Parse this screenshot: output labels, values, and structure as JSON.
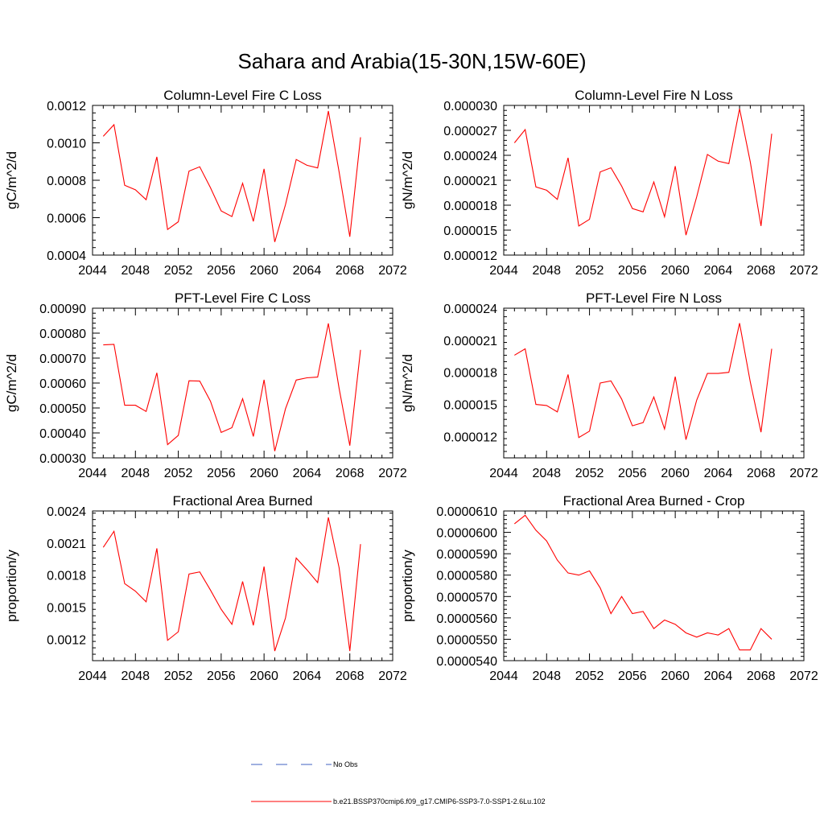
{
  "title": "Sahara and Arabia(15-30N,15W-60E)",
  "colors": {
    "series": "#ff0000",
    "obs": "#4060c0",
    "axis": "#000000"
  },
  "chart_data": [
    {
      "type": "line",
      "title": "Column-Level Fire C Loss",
      "ylabel": "gC/m^2/d",
      "xlim": [
        2044,
        2072
      ],
      "ylim": [
        0.0004,
        0.0012
      ],
      "xticks": [
        2044,
        2048,
        2052,
        2056,
        2060,
        2064,
        2068,
        2072
      ],
      "xtick_labels": [
        "2044",
        "2048",
        "2052",
        "2056",
        "2060",
        "2064",
        "2068",
        "2072"
      ],
      "yticks": [
        0.0004,
        0.0006,
        0.0008,
        0.001,
        0.0012
      ],
      "ytick_labels": [
        "0.0004",
        "0.0006",
        "0.0008",
        "0.0010",
        "0.0012"
      ],
      "x": [
        2045,
        2046,
        2047,
        2048,
        2049,
        2050,
        2051,
        2052,
        2053,
        2054,
        2055,
        2056,
        2057,
        2058,
        2059,
        2060,
        2061,
        2062,
        2063,
        2064,
        2065,
        2066,
        2067,
        2068,
        2069
      ],
      "values": [
        0.001035,
        0.001097,
        0.000773,
        0.000749,
        0.000696,
        0.000925,
        0.000537,
        0.000578,
        0.000849,
        0.000872,
        0.00076,
        0.000636,
        0.000606,
        0.000784,
        0.00058,
        0.000861,
        0.00047,
        0.00067,
        0.000911,
        0.00088,
        0.000866,
        0.00117,
        0.000845,
        0.000498,
        0.00103
      ]
    },
    {
      "type": "line",
      "title": "Column-Level Fire N Loss",
      "ylabel": "gN/m^2/d",
      "xlim": [
        2044,
        2072
      ],
      "ylim": [
        1.2e-05,
        3e-05
      ],
      "xticks": [
        2044,
        2048,
        2052,
        2056,
        2060,
        2064,
        2068,
        2072
      ],
      "xtick_labels": [
        "2044",
        "2048",
        "2052",
        "2056",
        "2060",
        "2064",
        "2068",
        "2072"
      ],
      "yticks": [
        1.2e-05,
        1.5e-05,
        1.8e-05,
        2.1e-05,
        2.4e-05,
        2.7e-05,
        3e-05
      ],
      "ytick_labels": [
        "0.000012",
        "0.000015",
        "0.000018",
        "0.000021",
        "0.000024",
        "0.000027",
        "0.000030"
      ],
      "x": [
        2045,
        2046,
        2047,
        2048,
        2049,
        2050,
        2051,
        2052,
        2053,
        2054,
        2055,
        2056,
        2057,
        2058,
        2059,
        2060,
        2061,
        2062,
        2063,
        2064,
        2065,
        2066,
        2067,
        2068,
        2069
      ],
      "values": [
        2.55e-05,
        2.71e-05,
        2.02e-05,
        1.98e-05,
        1.87e-05,
        2.37e-05,
        1.55e-05,
        1.63e-05,
        2.2e-05,
        2.25e-05,
        2.03e-05,
        1.76e-05,
        1.72e-05,
        2.08e-05,
        1.66e-05,
        2.27e-05,
        1.44e-05,
        1.9e-05,
        2.41e-05,
        2.33e-05,
        2.3e-05,
        2.96e-05,
        2.32e-05,
        1.55e-05,
        2.66e-05
      ]
    },
    {
      "type": "line",
      "title": "PFT-Level Fire C Loss",
      "ylabel": "gC/m^2/d",
      "xlim": [
        2044,
        2072
      ],
      "ylim": [
        0.0003,
        0.0009
      ],
      "xticks": [
        2044,
        2048,
        2052,
        2056,
        2060,
        2064,
        2068,
        2072
      ],
      "xtick_labels": [
        "2044",
        "2048",
        "2052",
        "2056",
        "2060",
        "2064",
        "2068",
        "2072"
      ],
      "yticks": [
        0.0003,
        0.0004,
        0.0005,
        0.0006,
        0.0007,
        0.0008,
        0.0009
      ],
      "ytick_labels": [
        "0.00030",
        "0.00040",
        "0.00050",
        "0.00060",
        "0.00070",
        "0.00080",
        "0.00090"
      ],
      "x": [
        2045,
        2046,
        2047,
        2048,
        2049,
        2050,
        2051,
        2052,
        2053,
        2054,
        2055,
        2056,
        2057,
        2058,
        2059,
        2060,
        2061,
        2062,
        2063,
        2064,
        2065,
        2066,
        2067,
        2068,
        2069
      ],
      "values": [
        0.000753,
        0.000755,
        0.000511,
        0.000511,
        0.000486,
        0.000641,
        0.000353,
        0.00039,
        0.000609,
        0.000608,
        0.000527,
        0.000402,
        0.000421,
        0.000537,
        0.000386,
        0.000613,
        0.000327,
        0.000497,
        0.000612,
        0.000621,
        0.000624,
        0.000839,
        0.000579,
        0.000349,
        0.000733
      ]
    },
    {
      "type": "line",
      "title": "PFT-Level Fire N Loss",
      "ylabel": "gN/m^2/d",
      "xlim": [
        2044,
        2072
      ],
      "ylim": [
        1e-05,
        2.4e-05
      ],
      "xticks": [
        2044,
        2048,
        2052,
        2056,
        2060,
        2064,
        2068,
        2072
      ],
      "xtick_labels": [
        "2044",
        "2048",
        "2052",
        "2056",
        "2060",
        "2064",
        "2068",
        "2072"
      ],
      "yticks": [
        1.2e-05,
        1.5e-05,
        1.8e-05,
        2.1e-05,
        2.4e-05
      ],
      "ytick_labels": [
        "0.000012",
        "0.000015",
        "0.000018",
        "0.000021",
        "0.000024"
      ],
      "x": [
        2045,
        2046,
        2047,
        2048,
        2049,
        2050,
        2051,
        2052,
        2053,
        2054,
        2055,
        2056,
        2057,
        2058,
        2059,
        2060,
        2061,
        2062,
        2063,
        2064,
        2065,
        2066,
        2067,
        2068,
        2069
      ],
      "values": [
        1.96e-05,
        2.02e-05,
        1.5e-05,
        1.49e-05,
        1.43e-05,
        1.78e-05,
        1.19e-05,
        1.25e-05,
        1.7e-05,
        1.72e-05,
        1.55e-05,
        1.3e-05,
        1.33e-05,
        1.57e-05,
        1.27e-05,
        1.76e-05,
        1.17e-05,
        1.54e-05,
        1.79e-05,
        1.79e-05,
        1.8e-05,
        2.26e-05,
        1.71e-05,
        1.24e-05,
        2.02e-05
      ]
    },
    {
      "type": "line",
      "title": "Fractional Area Burned",
      "ylabel": "proportion/y",
      "xlim": [
        2044,
        2072
      ],
      "ylim": [
        0.001,
        0.0024
      ],
      "xticks": [
        2044,
        2048,
        2052,
        2056,
        2060,
        2064,
        2068,
        2072
      ],
      "xtick_labels": [
        "2044",
        "2048",
        "2052",
        "2056",
        "2060",
        "2064",
        "2068",
        "2072"
      ],
      "yticks": [
        0.0012,
        0.0015,
        0.0018,
        0.0021,
        0.0024
      ],
      "ytick_labels": [
        "0.0012",
        "0.0015",
        "0.0018",
        "0.0021",
        "0.0024"
      ],
      "x": [
        2045,
        2046,
        2047,
        2048,
        2049,
        2050,
        2051,
        2052,
        2053,
        2054,
        2055,
        2056,
        2057,
        2058,
        2059,
        2060,
        2061,
        2062,
        2063,
        2064,
        2065,
        2066,
        2067,
        2068,
        2069
      ],
      "values": [
        0.00206,
        0.00221,
        0.00172,
        0.00165,
        0.00155,
        0.00205,
        0.00119,
        0.00127,
        0.00181,
        0.00183,
        0.00166,
        0.00148,
        0.00134,
        0.00174,
        0.00133,
        0.00188,
        0.00109,
        0.0014,
        0.00196,
        0.00185,
        0.00173,
        0.00234,
        0.00187,
        0.00109,
        0.00209
      ]
    },
    {
      "type": "line",
      "title": "Fractional Area Burned - Crop",
      "ylabel": "proportion/y",
      "xlim": [
        2044,
        2072
      ],
      "ylim": [
        5.4e-05,
        6.1e-05
      ],
      "xticks": [
        2044,
        2048,
        2052,
        2056,
        2060,
        2064,
        2068,
        2072
      ],
      "xtick_labels": [
        "2044",
        "2048",
        "2052",
        "2056",
        "2060",
        "2064",
        "2068",
        "2072"
      ],
      "yticks": [
        5.4e-05,
        5.5e-05,
        5.6e-05,
        5.7e-05,
        5.8e-05,
        5.9e-05,
        6e-05,
        6.1e-05
      ],
      "ytick_labels": [
        "0.0000540",
        "0.0000550",
        "0.0000560",
        "0.0000570",
        "0.0000580",
        "0.0000590",
        "0.0000600",
        "0.0000610"
      ],
      "x": [
        2045,
        2046,
        2047,
        2048,
        2049,
        2050,
        2051,
        2052,
        2053,
        2054,
        2055,
        2056,
        2057,
        2058,
        2059,
        2060,
        2061,
        2062,
        2063,
        2064,
        2065,
        2066,
        2067,
        2068,
        2069
      ],
      "values": [
        6.04e-05,
        6.08e-05,
        6.01e-05,
        5.96e-05,
        5.87e-05,
        5.81e-05,
        5.8e-05,
        5.82e-05,
        5.74e-05,
        5.62e-05,
        5.7e-05,
        5.62e-05,
        5.63e-05,
        5.55e-05,
        5.59e-05,
        5.57e-05,
        5.53e-05,
        5.51e-05,
        5.53e-05,
        5.52e-05,
        5.55e-05,
        5.45e-05,
        5.45e-05,
        5.55e-05,
        5.5e-05
      ]
    }
  ],
  "legend": [
    {
      "label": "No Obs",
      "style": "dashed",
      "color": "#4060c0"
    },
    {
      "label": "b.e21.BSSP370cmip6.f09_g17.CMIP6-SSP3-7.0-SSP1-2.6Lu.102",
      "style": "solid",
      "color": "#ff0000"
    }
  ]
}
